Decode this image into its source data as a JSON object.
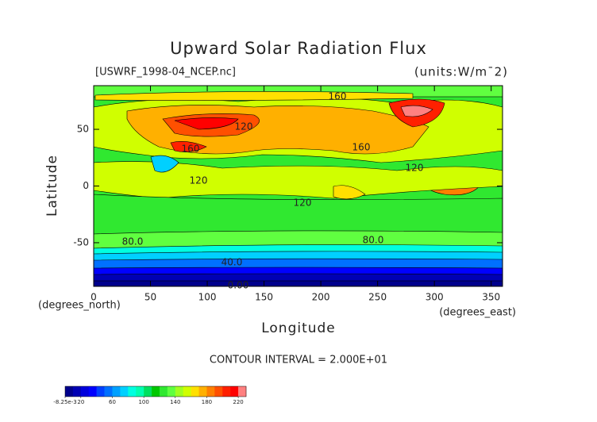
{
  "chart_data": {
    "type": "contour",
    "title": "Upward Solar Radiation Flux",
    "subtitle_left": "[USWRF_1998-04_NCEP.nc]",
    "subtitle_right": "(units:W/m¯2)",
    "x_label": "Longitude",
    "y_label": "Latitude",
    "x_units": "(degrees_east)",
    "y_units": "(degrees_north)",
    "footnote": "CONTOUR INTERVAL = 2.000E+01",
    "xlim": [
      0,
      360
    ],
    "ylim": [
      -88.5,
      88.5
    ],
    "xticks": [
      0,
      50,
      100,
      150,
      200,
      250,
      300,
      350
    ],
    "yticks": [
      -50,
      0,
      50
    ],
    "contour_labels": [
      "160",
      "120",
      "160",
      "160",
      "120",
      "120",
      "120",
      "80.0",
      "80.0",
      "40.0",
      "0.00"
    ],
    "colorbar": {
      "lim": [
        -0.00825,
        230
      ],
      "ticks": [
        {
          "value": -0.00825,
          "label": "-8.25e-3"
        },
        20,
        60,
        100,
        140,
        180,
        220
      ],
      "colors": [
        "#00008c",
        "#0000b4",
        "#0000dc",
        "#0000ff",
        "#0040ff",
        "#0070ff",
        "#00a0ff",
        "#00d0ff",
        "#00ffe0",
        "#00ffb0",
        "#00e060",
        "#00c800",
        "#30e830",
        "#60ff40",
        "#a0ff20",
        "#d0ff00",
        "#ffe000",
        "#ffb000",
        "#ff8000",
        "#ff5000",
        "#ff2000",
        "#ff0000",
        "#ff8080"
      ]
    }
  }
}
